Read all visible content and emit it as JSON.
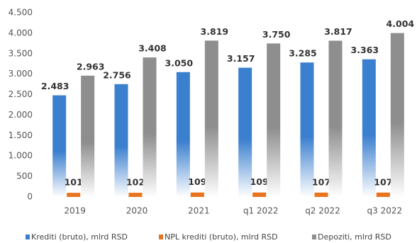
{
  "chart_data": {
    "type": "bar",
    "categories": [
      "2019",
      "2020",
      "2021",
      "q1 2022",
      "q2 2022",
      "q3 2022"
    ],
    "series": [
      {
        "name": "Krediti (bruto), mlrd RSD",
        "color": "#3b7fcf",
        "values": [
          2483,
          2756,
          3050,
          3157,
          3285,
          3363
        ],
        "value_labels": [
          "2.483",
          "2.756",
          "3.050",
          "3.157",
          "3.285",
          "3.363"
        ]
      },
      {
        "name": "NPL krediti (bruto), mlrd RSD",
        "color": "#e8741e",
        "values": [
          101,
          102,
          109,
          109,
          107,
          107
        ]
      },
      {
        "name": "Depoziti, mlrd RSD",
        "color": "#8e8e8e",
        "values": [
          2963,
          3408,
          3819,
          3750,
          3817,
          4004
        ],
        "value_labels": [
          "2.963",
          "3.408",
          "3.819",
          "3.750",
          "3.817",
          "4.004"
        ]
      }
    ],
    "ylim": [
      0,
      4500
    ],
    "yticks": [
      0,
      500,
      {
        "value": 1000,
        "label": "1.000"
      },
      {
        "value": 1500,
        "label": "1.500"
      },
      {
        "value": 2000,
        "label": "2.000"
      },
      {
        "value": 2500,
        "label": "2.500"
      },
      {
        "value": 3000,
        "label": "3.000"
      },
      {
        "value": 3500,
        "label": "3.500"
      },
      {
        "value": 4000,
        "label": "4.000"
      },
      {
        "value": 4500,
        "label": "4.500"
      }
    ],
    "grid": false
  }
}
